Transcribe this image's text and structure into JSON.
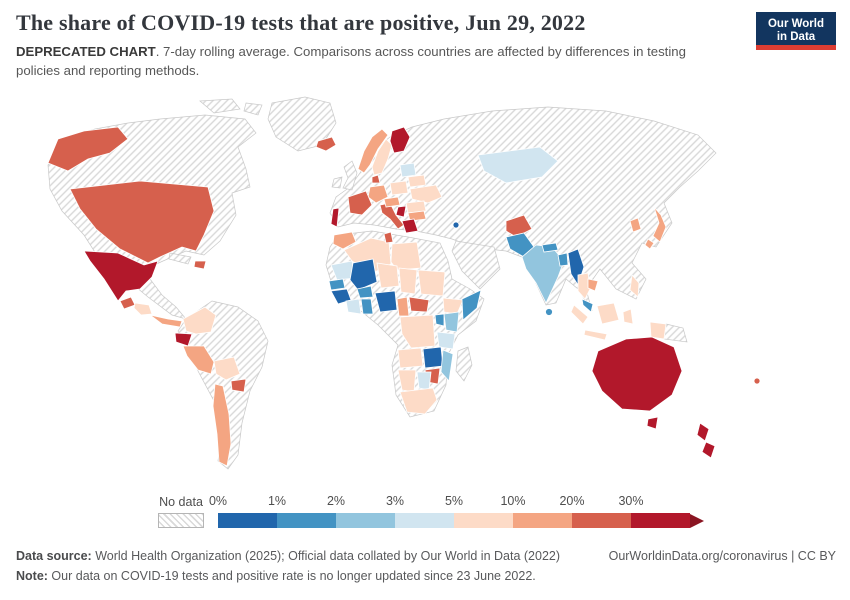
{
  "header": {
    "title": "The share of COVID-19 tests that are positive, Jun 29, 2022",
    "subtitle_bold": "DEPRECATED CHART",
    "subtitle_rest": ". 7-day rolling average. Comparisons across countries are affected by differences in testing policies and reporting methods."
  },
  "logo": {
    "line1": "Our World",
    "line2": "in Data",
    "bg_color": "#12355f",
    "accent_color": "#dc3d33"
  },
  "footer": {
    "source_label": "Data source:",
    "source_text": " World Health Organization (2025); Official data collated by Our World in Data (2022)",
    "credit": "OurWorldinData.org/coronavirus | CC BY",
    "note_label": "Note:",
    "note_text": " Our data on COVID-19 tests and positive rate is no longer updated since 23 June 2022."
  },
  "chart_data": {
    "type": "choropleth_map",
    "title": "The share of COVID-19 tests that are positive",
    "date": "Jun 29, 2022",
    "metric": "Share of COVID-19 tests that are positive, 7-day rolling average",
    "legend": {
      "no_data_label": "No data",
      "tick_labels": [
        "0%",
        "1%",
        "2%",
        "3%",
        "5%",
        "10%",
        "20%",
        "30%"
      ],
      "bin_labels": [
        "0-1%",
        "1-2%",
        "2-3%",
        "3-5%",
        "5-10%",
        "10-20%",
        "20-30%",
        "30%+"
      ],
      "colors": [
        "#2166ac",
        "#4393c3",
        "#92c5de",
        "#d1e5f0",
        "#fddbc7",
        "#f4a582",
        "#d6604d",
        "#b2182b"
      ],
      "arrow_color": "#8a1522",
      "position": "bottom"
    },
    "country_bins": {
      "united-states": 6,
      "mexico": 7,
      "guatemala": 6,
      "honduras": 4,
      "panama": 5,
      "dominican-republic": 6,
      "colombia": 4,
      "ecuador": 7,
      "peru": 5,
      "bolivia": 4,
      "paraguay": 6,
      "chile": 5,
      "iceland": 6,
      "norway": 5,
      "sweden": 4,
      "finland": 7,
      "denmark": 6,
      "germany": 5,
      "france": 6,
      "portugal": 7,
      "italy": 6,
      "austria": 5,
      "poland": 4,
      "belarus": 4,
      "baltic-states": 3,
      "ukraine": 4,
      "romania": 4,
      "serbia": 7,
      "bulgaria": 5,
      "greece": 7,
      "kazakhstan": 3,
      "israel": 0,
      "afghanistan": 6,
      "pakistan": 1,
      "india": 2,
      "nepal": 1,
      "bangladesh": 1,
      "myanmar": 0,
      "thailand": 4,
      "cambodia": 5,
      "malaysia": 1,
      "south-korea": 5,
      "japan": 5,
      "sri-lanka": 1,
      "philippines": 4,
      "indonesia": 4,
      "morocco": 5,
      "algeria": 4,
      "tunisia": 6,
      "libya": 4,
      "mauritania": 3,
      "mali": 0,
      "senegal": 1,
      "guinea": 0,
      "burkina-faso": 1,
      "cote-divoire": 3,
      "ghana": 1,
      "nigeria": 0,
      "niger": 4,
      "chad": 4,
      "sudan": 4,
      "cameroon": 5,
      "central-african-republic": 6,
      "ethiopia": 4,
      "somalia": 1,
      "kenya": 2,
      "uganda": 1,
      "democratic-republic-of-congo": 4,
      "tanzania": 3,
      "angola": 4,
      "zambia": 0,
      "mozambique": 2,
      "zimbabwe": 6,
      "namibia": 4,
      "botswana": 3,
      "south-africa": 4,
      "australia": 7,
      "new-zealand": 7,
      "fiji": 6
    },
    "no_data_countries": [
      "Canada",
      "Greenland",
      "Brazil",
      "Argentina",
      "Venezuela",
      "Cuba",
      "United Kingdom",
      "Ireland",
      "Spain",
      "Turkey",
      "Iran",
      "Saudi Arabia",
      "Egypt",
      "Russia",
      "China",
      "Mongolia",
      "Vietnam",
      "Madagascar",
      "Papua New Guinea"
    ]
  }
}
